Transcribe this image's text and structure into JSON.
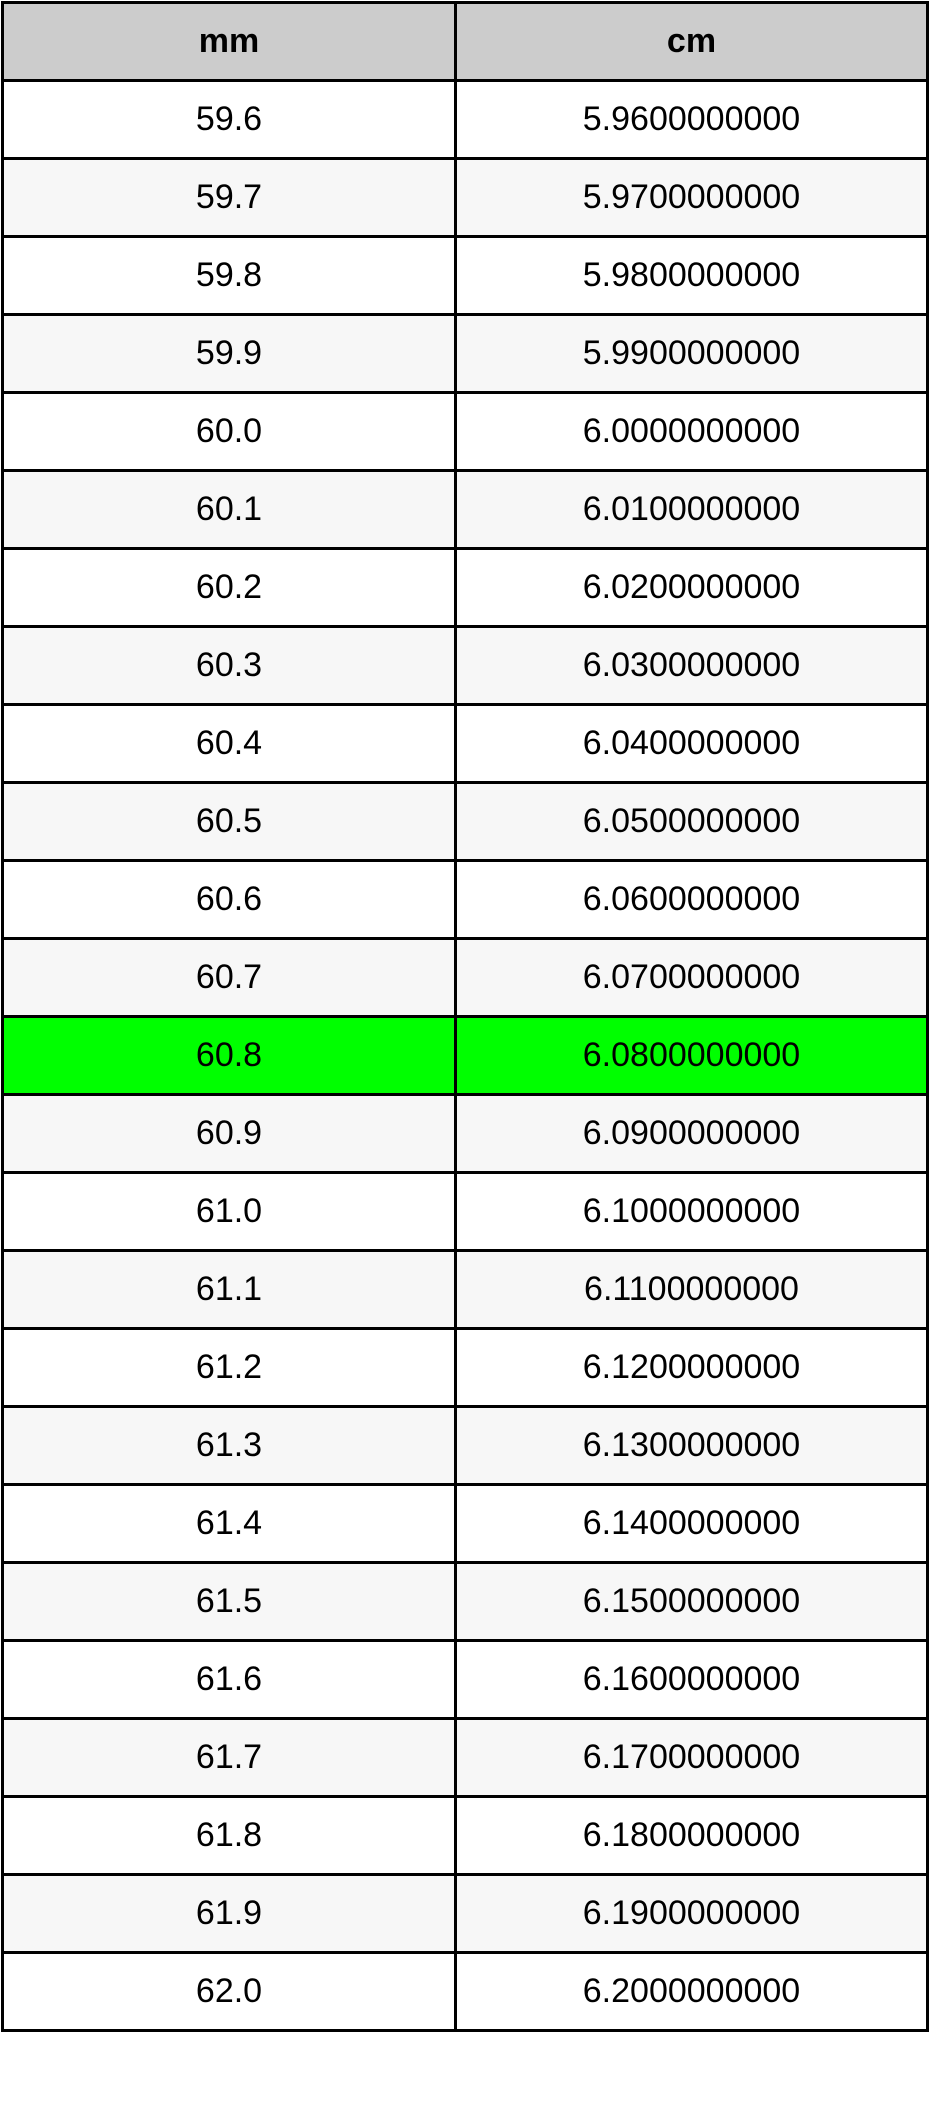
{
  "table": {
    "headers": [
      "mm",
      "cm"
    ],
    "highlight_color": "#00ff00",
    "highlighted_row": 12,
    "rows": [
      [
        "59.6",
        "5.9600000000"
      ],
      [
        "59.7",
        "5.9700000000"
      ],
      [
        "59.8",
        "5.9800000000"
      ],
      [
        "59.9",
        "5.9900000000"
      ],
      [
        "60.0",
        "6.0000000000"
      ],
      [
        "60.1",
        "6.0100000000"
      ],
      [
        "60.2",
        "6.0200000000"
      ],
      [
        "60.3",
        "6.0300000000"
      ],
      [
        "60.4",
        "6.0400000000"
      ],
      [
        "60.5",
        "6.0500000000"
      ],
      [
        "60.6",
        "6.0600000000"
      ],
      [
        "60.7",
        "6.0700000000"
      ],
      [
        "60.8",
        "6.0800000000"
      ],
      [
        "60.9",
        "6.0900000000"
      ],
      [
        "61.0",
        "6.1000000000"
      ],
      [
        "61.1",
        "6.1100000000"
      ],
      [
        "61.2",
        "6.1200000000"
      ],
      [
        "61.3",
        "6.1300000000"
      ],
      [
        "61.4",
        "6.1400000000"
      ],
      [
        "61.5",
        "6.1500000000"
      ],
      [
        "61.6",
        "6.1600000000"
      ],
      [
        "61.7",
        "6.1700000000"
      ],
      [
        "61.8",
        "6.1800000000"
      ],
      [
        "61.9",
        "6.1900000000"
      ],
      [
        "62.0",
        "6.2000000000"
      ]
    ]
  }
}
